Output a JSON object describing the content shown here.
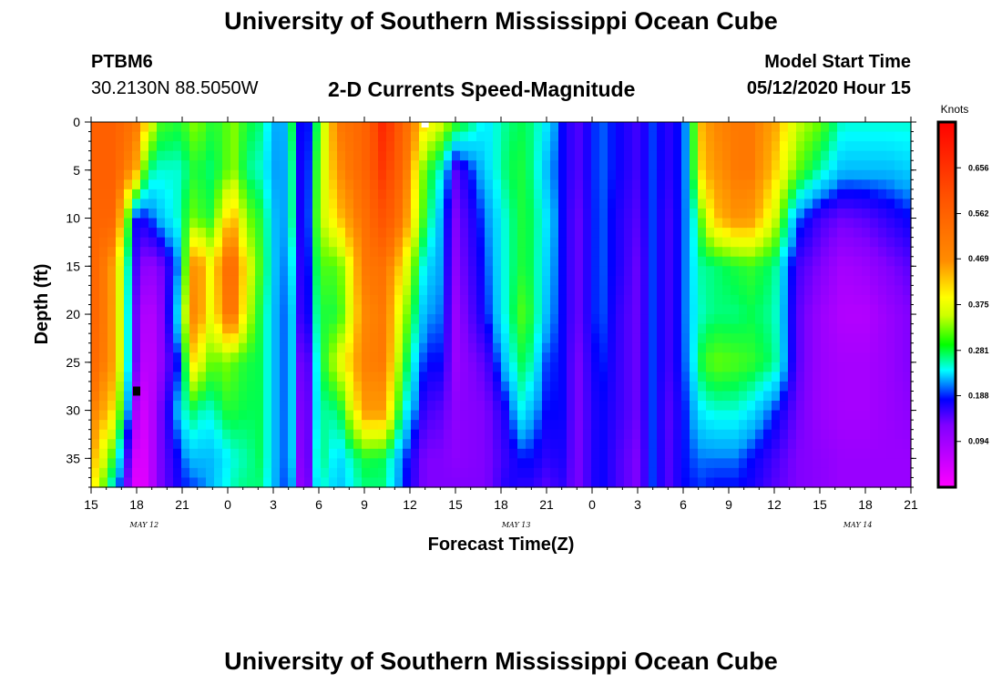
{
  "title_top": "University of Southern Mississippi Ocean Cube",
  "title_bottom": "University of Southern Mississippi Ocean Cube",
  "station": {
    "id": "PTBM6",
    "coords": "30.2130N 88.5050W"
  },
  "model": {
    "label": "Model Start Time",
    "time": "05/12/2020 Hour 15"
  },
  "colors": {
    "marker_black": "#000000",
    "marker_white": "#ffffff"
  },
  "chart_data": {
    "type": "heatmap",
    "title": "2-D Currents Speed-Magnitude",
    "xlabel": "Forecast Time(Z)",
    "ylabel": "Depth (ft)",
    "units": "Knots",
    "x_ticks": [
      "15",
      "18",
      "21",
      "0",
      "3",
      "6",
      "9",
      "12",
      "15",
      "18",
      "21",
      "0",
      "3",
      "6",
      "9",
      "12",
      "15",
      "18",
      "21"
    ],
    "date_labels": [
      {
        "text": "MAY 12",
        "x_hour": 18.5
      },
      {
        "text": "MAY 13",
        "x_hour": 43
      },
      {
        "text": "MAY 14",
        "x_hour": 65.5
      }
    ],
    "xlim_hours": [
      0,
      54
    ],
    "ylim_ft": [
      0,
      38
    ],
    "y_ticks": [
      0,
      5,
      10,
      15,
      20,
      25,
      30,
      35
    ],
    "colorbar": {
      "range": [
        0.0,
        0.75
      ],
      "tick_values": [
        0.094,
        0.188,
        0.281,
        0.375,
        0.469,
        0.562,
        0.656
      ],
      "tick_labels": [
        "0.094",
        "0.188",
        "0.281",
        "0.375",
        "0.469",
        "0.562",
        "0.656"
      ]
    },
    "column_hours": [
      0,
      1.5,
      3,
      3.7,
      4.5,
      6,
      6.5,
      7,
      8,
      8.8,
      9.5,
      10.2,
      11.2,
      12.5,
      13.3,
      14,
      15,
      16.3,
      18,
      19.3,
      20.5,
      22,
      23,
      24,
      26,
      27.5,
      28.3,
      29,
      30,
      31,
      32,
      33.5,
      35,
      36,
      37,
      38,
      39,
      39.5,
      40,
      41,
      42.5,
      43.5,
      45,
      46.5,
      48,
      49.5,
      51,
      52.5,
      54
    ],
    "depth_ft": [
      0,
      5,
      10,
      15,
      20,
      25,
      30,
      35,
      38
    ],
    "speed_knots": [
      [
        0.56,
        0.56,
        0.55,
        0.56,
        0.56,
        0.55,
        0.5,
        0.45,
        0.42
      ],
      [
        0.56,
        0.56,
        0.55,
        0.45,
        0.45,
        0.45,
        0.4,
        0.28,
        0.22
      ],
      [
        0.5,
        0.44,
        0.15,
        0.12,
        0.1,
        0.1,
        0.06,
        0.03,
        0.02
      ],
      [
        0.4,
        0.26,
        0.16,
        0.08,
        0.05,
        0.04,
        0.03,
        0.03,
        0.03
      ],
      [
        0.3,
        0.24,
        0.2,
        0.1,
        0.08,
        0.08,
        0.1,
        0.1,
        0.1
      ],
      [
        0.28,
        0.24,
        0.25,
        0.2,
        0.25,
        0.18,
        0.22,
        0.17,
        0.16
      ],
      [
        0.32,
        0.28,
        0.32,
        0.45,
        0.48,
        0.42,
        0.28,
        0.2,
        0.17
      ],
      [
        0.32,
        0.28,
        0.3,
        0.48,
        0.48,
        0.38,
        0.25,
        0.2,
        0.17
      ],
      [
        0.28,
        0.26,
        0.28,
        0.37,
        0.36,
        0.3,
        0.24,
        0.2,
        0.2
      ],
      [
        0.3,
        0.3,
        0.4,
        0.52,
        0.5,
        0.32,
        0.28,
        0.22,
        0.23
      ],
      [
        0.32,
        0.32,
        0.42,
        0.52,
        0.5,
        0.3,
        0.28,
        0.24,
        0.25
      ],
      [
        0.28,
        0.26,
        0.32,
        0.38,
        0.36,
        0.28,
        0.27,
        0.25,
        0.26
      ],
      [
        0.26,
        0.24,
        0.28,
        0.29,
        0.27,
        0.27,
        0.27,
        0.27,
        0.26
      ],
      [
        0.17,
        0.17,
        0.17,
        0.17,
        0.17,
        0.17,
        0.17,
        0.17,
        0.17
      ],
      [
        0.28,
        0.26,
        0.26,
        0.23,
        0.21,
        0.21,
        0.21,
        0.21,
        0.19
      ],
      [
        0.1,
        0.1,
        0.1,
        0.1,
        0.1,
        0.06,
        0.05,
        0.04,
        0.04
      ],
      [
        0.3,
        0.32,
        0.33,
        0.3,
        0.28,
        0.26,
        0.25,
        0.27,
        0.25
      ],
      [
        0.5,
        0.47,
        0.42,
        0.3,
        0.28,
        0.36,
        0.26,
        0.21,
        0.2
      ],
      [
        0.55,
        0.55,
        0.52,
        0.5,
        0.48,
        0.49,
        0.46,
        0.28,
        0.26
      ],
      [
        0.66,
        0.64,
        0.6,
        0.52,
        0.5,
        0.5,
        0.46,
        0.27,
        0.26
      ],
      [
        0.56,
        0.54,
        0.5,
        0.4,
        0.35,
        0.3,
        0.25,
        0.18,
        0.17
      ],
      [
        0.4,
        0.3,
        0.28,
        0.22,
        0.19,
        0.16,
        0.13,
        0.1,
        0.1
      ],
      [
        0.36,
        0.24,
        0.2,
        0.19,
        0.18,
        0.16,
        0.12,
        0.1,
        0.1
      ],
      [
        0.3,
        0.12,
        0.1,
        0.09,
        0.08,
        0.08,
        0.09,
        0.09,
        0.1
      ],
      [
        0.22,
        0.21,
        0.18,
        0.17,
        0.16,
        0.12,
        0.1,
        0.1,
        0.1
      ],
      [
        0.26,
        0.27,
        0.25,
        0.25,
        0.25,
        0.22,
        0.16,
        0.14,
        0.15
      ],
      [
        0.27,
        0.28,
        0.28,
        0.28,
        0.3,
        0.27,
        0.23,
        0.16,
        0.14
      ],
      [
        0.26,
        0.26,
        0.27,
        0.27,
        0.28,
        0.25,
        0.2,
        0.16,
        0.14
      ],
      [
        0.22,
        0.2,
        0.22,
        0.21,
        0.2,
        0.17,
        0.16,
        0.14,
        0.12
      ],
      [
        0.16,
        0.16,
        0.16,
        0.16,
        0.16,
        0.16,
        0.16,
        0.15,
        0.14
      ],
      [
        0.12,
        0.12,
        0.11,
        0.11,
        0.11,
        0.1,
        0.1,
        0.1,
        0.1
      ],
      [
        0.18,
        0.18,
        0.18,
        0.18,
        0.18,
        0.17,
        0.16,
        0.16,
        0.16
      ],
      [
        0.15,
        0.15,
        0.14,
        0.14,
        0.13,
        0.13,
        0.13,
        0.12,
        0.12
      ],
      [
        0.13,
        0.13,
        0.12,
        0.11,
        0.11,
        0.11,
        0.11,
        0.1,
        0.1
      ],
      [
        0.17,
        0.17,
        0.17,
        0.17,
        0.17,
        0.17,
        0.17,
        0.17,
        0.17
      ],
      [
        0.14,
        0.14,
        0.13,
        0.13,
        0.13,
        0.13,
        0.12,
        0.12,
        0.12
      ],
      [
        0.17,
        0.17,
        0.17,
        0.17,
        0.17,
        0.17,
        0.16,
        0.16,
        0.16
      ],
      [
        0.22,
        0.22,
        0.21,
        0.21,
        0.21,
        0.2,
        0.18,
        0.17,
        0.16
      ],
      [
        0.42,
        0.4,
        0.28,
        0.25,
        0.24,
        0.27,
        0.22,
        0.18,
        0.17
      ],
      [
        0.48,
        0.46,
        0.42,
        0.26,
        0.26,
        0.31,
        0.24,
        0.18,
        0.16
      ],
      [
        0.5,
        0.5,
        0.47,
        0.28,
        0.26,
        0.3,
        0.24,
        0.18,
        0.16
      ],
      [
        0.5,
        0.5,
        0.46,
        0.29,
        0.27,
        0.29,
        0.22,
        0.16,
        0.15
      ],
      [
        0.45,
        0.42,
        0.36,
        0.26,
        0.25,
        0.26,
        0.17,
        0.13,
        0.12
      ],
      [
        0.35,
        0.31,
        0.18,
        0.13,
        0.12,
        0.12,
        0.11,
        0.1,
        0.1
      ],
      [
        0.31,
        0.25,
        0.13,
        0.1,
        0.08,
        0.08,
        0.08,
        0.09,
        0.09
      ],
      [
        0.24,
        0.2,
        0.11,
        0.07,
        0.06,
        0.07,
        0.07,
        0.08,
        0.08
      ],
      [
        0.24,
        0.2,
        0.12,
        0.08,
        0.06,
        0.07,
        0.07,
        0.08,
        0.08
      ],
      [
        0.24,
        0.2,
        0.14,
        0.1,
        0.08,
        0.08,
        0.08,
        0.08,
        0.08
      ],
      [
        0.24,
        0.21,
        0.16,
        0.12,
        0.1,
        0.1,
        0.09,
        0.08,
        0.08
      ]
    ],
    "markers": [
      {
        "x_hour": 3,
        "depth_ft": 28,
        "color": "#000000"
      },
      {
        "x_hour": 22,
        "depth_ft": 0,
        "color": "#ffffff"
      }
    ]
  }
}
